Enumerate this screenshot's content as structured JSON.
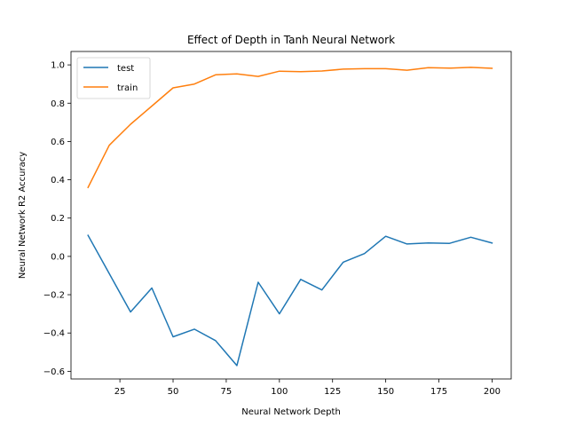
{
  "chart_data": {
    "type": "line",
    "title": "Effect of Depth in Tanh Neural Network",
    "xlabel": "Neural Network Depth",
    "ylabel": "Neural Network R2 Accuracy",
    "xlim": [
      2,
      209
    ],
    "ylim": [
      -0.64,
      1.07
    ],
    "xticks": [
      25,
      50,
      75,
      100,
      125,
      150,
      175,
      200
    ],
    "yticks": [
      -0.6,
      -0.4,
      -0.2,
      0.0,
      0.2,
      0.4,
      0.6,
      0.8,
      1.0
    ],
    "xtick_labels": [
      "25",
      "50",
      "75",
      "100",
      "125",
      "150",
      "175",
      "200"
    ],
    "ytick_labels": [
      "−0.6",
      "−0.4",
      "−0.2",
      "0.0",
      "0.2",
      "0.4",
      "0.6",
      "0.8",
      "1.0"
    ],
    "grid": false,
    "legend_position": "top-left",
    "x": [
      10,
      20,
      30,
      40,
      50,
      60,
      70,
      80,
      90,
      100,
      110,
      120,
      130,
      140,
      150,
      160,
      170,
      180,
      190,
      200
    ],
    "series": [
      {
        "name": "test",
        "color": "#1f77b4",
        "values": [
          0.11,
          -0.09,
          -0.29,
          -0.165,
          -0.42,
          -0.38,
          -0.44,
          -0.57,
          -0.135,
          -0.3,
          -0.12,
          -0.175,
          -0.03,
          0.015,
          0.105,
          0.065,
          0.07,
          0.068,
          0.1,
          0.07
        ]
      },
      {
        "name": "train",
        "color": "#ff7f0e",
        "values": [
          0.36,
          0.58,
          0.69,
          0.785,
          0.88,
          0.9,
          0.948,
          0.953,
          0.94,
          0.967,
          0.965,
          0.968,
          0.978,
          0.98,
          0.98,
          0.972,
          0.985,
          0.983,
          0.987,
          0.982
        ]
      }
    ]
  }
}
